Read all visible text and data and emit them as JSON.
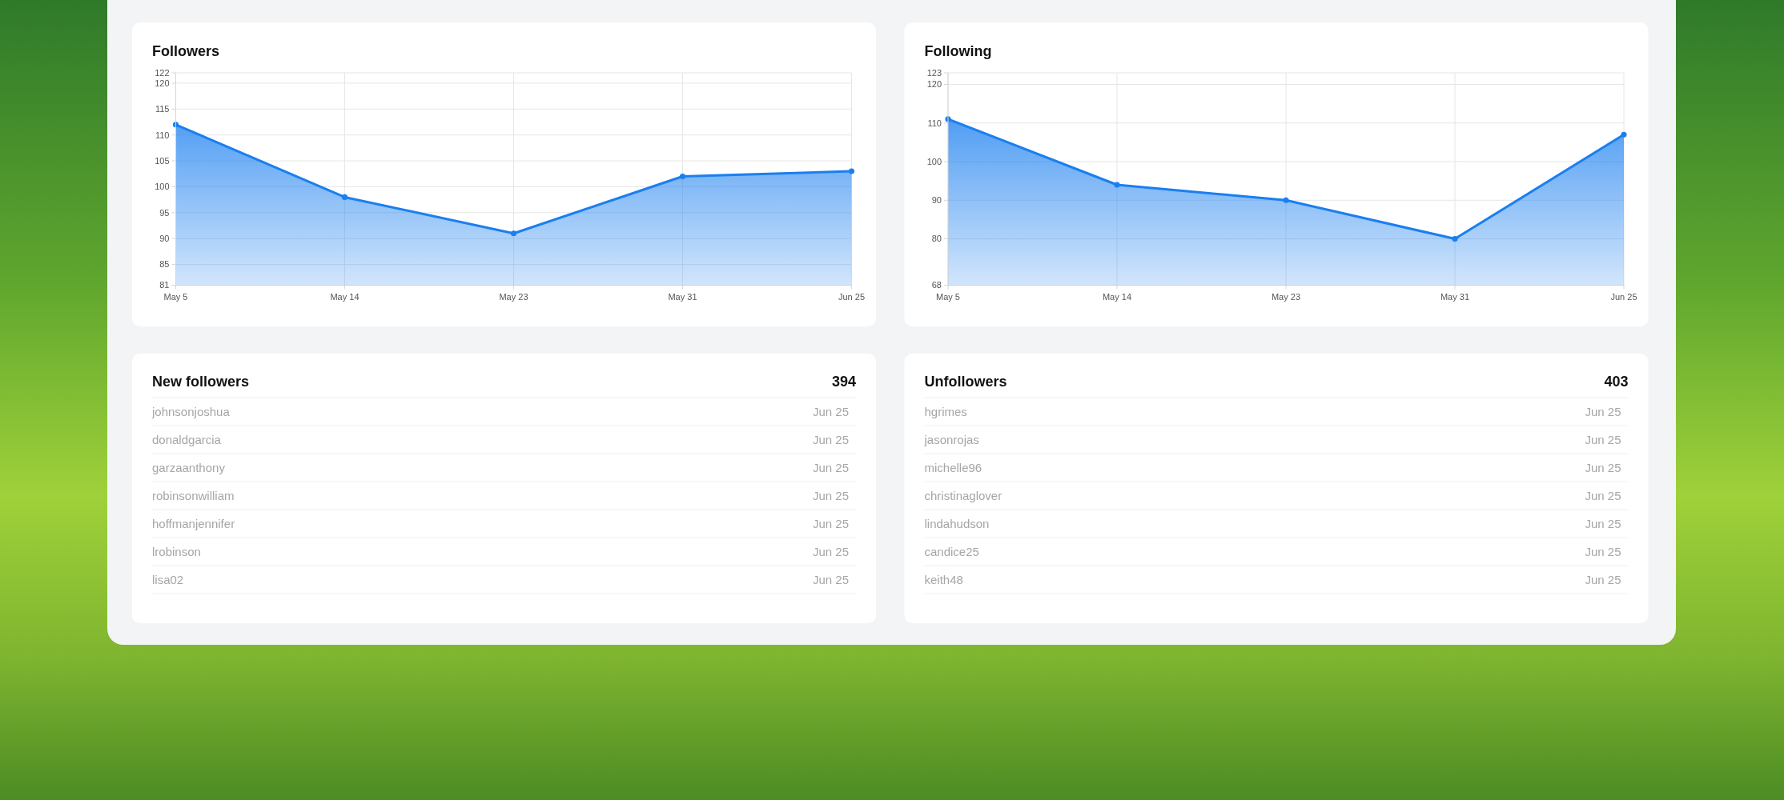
{
  "chart_data": [
    {
      "type": "area",
      "title": "Followers",
      "categories": [
        "May 5",
        "May 14",
        "May 23",
        "May 31",
        "Jun 25"
      ],
      "series": [
        {
          "color": "#1a7ff0",
          "values": [
            112,
            98,
            91,
            102,
            103
          ]
        }
      ],
      "ylim": [
        81,
        122
      ],
      "yticks": [
        81,
        85,
        90,
        95,
        100,
        105,
        110,
        115,
        120,
        122
      ],
      "grid": true,
      "marker": "circle"
    },
    {
      "type": "area",
      "title": "Following",
      "categories": [
        "May 5",
        "May 14",
        "May 23",
        "May 31",
        "Jun 25"
      ],
      "series": [
        {
          "color": "#1a7ff0",
          "values": [
            111,
            94,
            90,
            80,
            107
          ]
        }
      ],
      "ylim": [
        68,
        123
      ],
      "yticks": [
        68,
        80,
        90,
        100,
        110,
        120,
        123
      ],
      "grid": true,
      "marker": "circle"
    },
    {
      "type": "other",
      "title": "New followers",
      "annotations": [
        "394",
        "johnsonjoshua",
        "Jun 25",
        "donaldgarcia",
        "Jun 25",
        "garzaanthony",
        "Jun 25",
        "robinsonwilliam",
        "Jun 25",
        "hoffmanjennifer",
        "Jun 25",
        "lrobinson",
        "Jun 25",
        "lisa02",
        "Jun 25"
      ]
    },
    {
      "type": "other",
      "title": "Unfollowers",
      "annotations": [
        "403",
        "hgrimes",
        "Jun 25",
        "jasonrojas",
        "Jun 25",
        "michelle96",
        "Jun 25",
        "christinaglover",
        "Jun 25",
        "lindahudson",
        "Jun 25",
        "candice25",
        "Jun 25",
        "keith48",
        "Jun 25"
      ]
    }
  ]
}
